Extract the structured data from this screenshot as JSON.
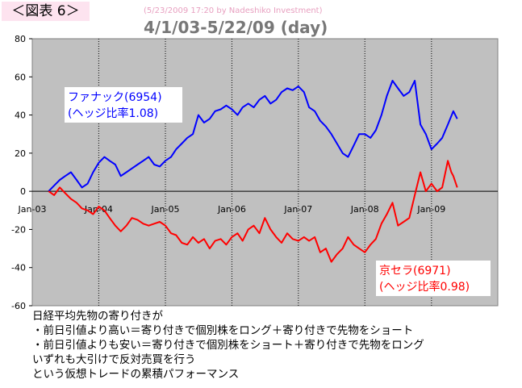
{
  "header": {
    "figure_label": "＜図表 6＞",
    "credit": "(5/23/2009 17:20 by Nadeshiko Investment)",
    "period": "4/1/03-5/22/09 (day)"
  },
  "caption": {
    "lines": [
      "日経平均先物の寄り付きが",
      "・前日引値より高い＝寄り付きで個別株をロング＋寄り付きで先物をショート",
      "・前日引値よりも安い＝寄り付きで個別株をショート＋寄り付きで先物をロング",
      "いずれも大引けで反対売買を行う",
      "という仮想トレードの累積パフォーマンス"
    ]
  },
  "colors": {
    "plot_bg": "#c0c0c0",
    "fanuc": "#0000ff",
    "kyocera": "#ff0000"
  },
  "chart_data": {
    "type": "line",
    "title": "4/1/03-5/22/09 (day)",
    "xlabel": "",
    "ylabel": "",
    "x_ticks": [
      "Jan-03",
      "Jan-04",
      "Jan-05",
      "Jan-06",
      "Jan-07",
      "Jan-08",
      "Jan-09"
    ],
    "y_ticks": [
      80,
      60,
      40,
      20,
      0,
      -20,
      -40,
      -60
    ],
    "ylim": [
      -60,
      80
    ],
    "xlim": [
      "2003-01-01",
      "2009-12-31"
    ],
    "grid": "vertical dotted at year boundaries",
    "legend": "inline labels",
    "series": [
      {
        "name": "ファナック(6954)",
        "label_lines": [
          "ファナック(6954)",
          "(ヘッジ比率1.08)"
        ],
        "color": "#0000ff",
        "points": [
          [
            "2003-04-01",
            0
          ],
          [
            "2003-05-01",
            3
          ],
          [
            "2003-06-01",
            6
          ],
          [
            "2003-07-01",
            8
          ],
          [
            "2003-08-01",
            10
          ],
          [
            "2003-09-01",
            6
          ],
          [
            "2003-10-01",
            2
          ],
          [
            "2003-11-01",
            4
          ],
          [
            "2003-12-01",
            10
          ],
          [
            "2004-01-01",
            15
          ],
          [
            "2004-02-01",
            18
          ],
          [
            "2004-03-01",
            16
          ],
          [
            "2004-04-01",
            14
          ],
          [
            "2004-05-01",
            8
          ],
          [
            "2004-06-01",
            10
          ],
          [
            "2004-07-01",
            12
          ],
          [
            "2004-08-01",
            14
          ],
          [
            "2004-09-01",
            16
          ],
          [
            "2004-10-01",
            18
          ],
          [
            "2004-11-01",
            14
          ],
          [
            "2004-12-01",
            13
          ],
          [
            "2005-01-01",
            16
          ],
          [
            "2005-02-01",
            18
          ],
          [
            "2005-03-01",
            22
          ],
          [
            "2005-04-01",
            25
          ],
          [
            "2005-05-01",
            28
          ],
          [
            "2005-06-01",
            30
          ],
          [
            "2005-07-01",
            40
          ],
          [
            "2005-08-01",
            36
          ],
          [
            "2005-09-01",
            38
          ],
          [
            "2005-10-01",
            42
          ],
          [
            "2005-11-01",
            43
          ],
          [
            "2005-12-01",
            45
          ],
          [
            "2006-01-01",
            43
          ],
          [
            "2006-02-01",
            40
          ],
          [
            "2006-03-01",
            44
          ],
          [
            "2006-04-01",
            46
          ],
          [
            "2006-05-01",
            44
          ],
          [
            "2006-06-01",
            48
          ],
          [
            "2006-07-01",
            50
          ],
          [
            "2006-08-01",
            46
          ],
          [
            "2006-09-01",
            48
          ],
          [
            "2006-10-01",
            52
          ],
          [
            "2006-11-01",
            54
          ],
          [
            "2006-12-01",
            53
          ],
          [
            "2007-01-01",
            55
          ],
          [
            "2007-02-01",
            52
          ],
          [
            "2007-03-01",
            44
          ],
          [
            "2007-04-01",
            42
          ],
          [
            "2007-05-01",
            37
          ],
          [
            "2007-06-01",
            34
          ],
          [
            "2007-07-01",
            30
          ],
          [
            "2007-08-01",
            25
          ],
          [
            "2007-09-01",
            20
          ],
          [
            "2007-10-01",
            18
          ],
          [
            "2007-11-01",
            24
          ],
          [
            "2007-12-01",
            30
          ],
          [
            "2008-01-01",
            30
          ],
          [
            "2008-02-01",
            28
          ],
          [
            "2008-03-01",
            32
          ],
          [
            "2008-04-01",
            40
          ],
          [
            "2008-05-01",
            50
          ],
          [
            "2008-06-01",
            58
          ],
          [
            "2008-07-01",
            54
          ],
          [
            "2008-08-01",
            50
          ],
          [
            "2008-09-01",
            52
          ],
          [
            "2008-10-01",
            58
          ],
          [
            "2008-11-01",
            35
          ],
          [
            "2008-12-01",
            30
          ],
          [
            "2009-01-01",
            22
          ],
          [
            "2009-02-01",
            25
          ],
          [
            "2009-03-01",
            28
          ],
          [
            "2009-04-01",
            35
          ],
          [
            "2009-05-01",
            42
          ],
          [
            "2009-05-22",
            38
          ]
        ]
      },
      {
        "name": "京セラ(6971)",
        "label_lines": [
          "京セラ(6971)",
          "(ヘッジ比率0.98)"
        ],
        "color": "#ff0000",
        "points": [
          [
            "2003-04-01",
            0
          ],
          [
            "2003-05-01",
            -2
          ],
          [
            "2003-06-01",
            2
          ],
          [
            "2003-07-01",
            -1
          ],
          [
            "2003-08-01",
            -4
          ],
          [
            "2003-09-01",
            -6
          ],
          [
            "2003-10-01",
            -9
          ],
          [
            "2003-11-01",
            -10
          ],
          [
            "2003-12-01",
            -12
          ],
          [
            "2004-01-01",
            -8
          ],
          [
            "2004-02-01",
            -10
          ],
          [
            "2004-03-01",
            -14
          ],
          [
            "2004-04-01",
            -18
          ],
          [
            "2004-05-01",
            -21
          ],
          [
            "2004-06-01",
            -18
          ],
          [
            "2004-07-01",
            -14
          ],
          [
            "2004-08-01",
            -15
          ],
          [
            "2004-09-01",
            -17
          ],
          [
            "2004-10-01",
            -18
          ],
          [
            "2004-11-01",
            -17
          ],
          [
            "2004-12-01",
            -16
          ],
          [
            "2005-01-01",
            -18
          ],
          [
            "2005-02-01",
            -22
          ],
          [
            "2005-03-01",
            -23
          ],
          [
            "2005-04-01",
            -27
          ],
          [
            "2005-05-01",
            -28
          ],
          [
            "2005-06-01",
            -24
          ],
          [
            "2005-07-01",
            -27
          ],
          [
            "2005-08-01",
            -25
          ],
          [
            "2005-09-01",
            -30
          ],
          [
            "2005-10-01",
            -26
          ],
          [
            "2005-11-01",
            -25
          ],
          [
            "2005-12-01",
            -28
          ],
          [
            "2006-01-01",
            -24
          ],
          [
            "2006-02-01",
            -22
          ],
          [
            "2006-03-01",
            -26
          ],
          [
            "2006-04-01",
            -20
          ],
          [
            "2006-05-01",
            -18
          ],
          [
            "2006-06-01",
            -22
          ],
          [
            "2006-07-01",
            -14
          ],
          [
            "2006-08-01",
            -20
          ],
          [
            "2006-09-01",
            -24
          ],
          [
            "2006-10-01",
            -27
          ],
          [
            "2006-11-01",
            -22
          ],
          [
            "2006-12-01",
            -25
          ],
          [
            "2007-01-01",
            -26
          ],
          [
            "2007-02-01",
            -24
          ],
          [
            "2007-03-01",
            -26
          ],
          [
            "2007-04-01",
            -24
          ],
          [
            "2007-05-01",
            -32
          ],
          [
            "2007-06-01",
            -30
          ],
          [
            "2007-07-01",
            -37
          ],
          [
            "2007-08-01",
            -33
          ],
          [
            "2007-09-01",
            -30
          ],
          [
            "2007-10-01",
            -24
          ],
          [
            "2007-11-01",
            -28
          ],
          [
            "2007-12-01",
            -30
          ],
          [
            "2008-01-01",
            -32
          ],
          [
            "2008-02-01",
            -28
          ],
          [
            "2008-03-01",
            -25
          ],
          [
            "2008-04-01",
            -17
          ],
          [
            "2008-05-01",
            -12
          ],
          [
            "2008-06-01",
            -6
          ],
          [
            "2008-07-01",
            -18
          ],
          [
            "2008-08-01",
            -16
          ],
          [
            "2008-09-01",
            -14
          ],
          [
            "2008-10-01",
            -2
          ],
          [
            "2008-11-01",
            10
          ],
          [
            "2008-12-01",
            0
          ],
          [
            "2009-01-01",
            4
          ],
          [
            "2009-02-01",
            0
          ],
          [
            "2009-03-01",
            2
          ],
          [
            "2009-04-01",
            16
          ],
          [
            "2009-04-20",
            10
          ],
          [
            "2009-05-01",
            8
          ],
          [
            "2009-05-22",
            2
          ]
        ]
      }
    ]
  }
}
